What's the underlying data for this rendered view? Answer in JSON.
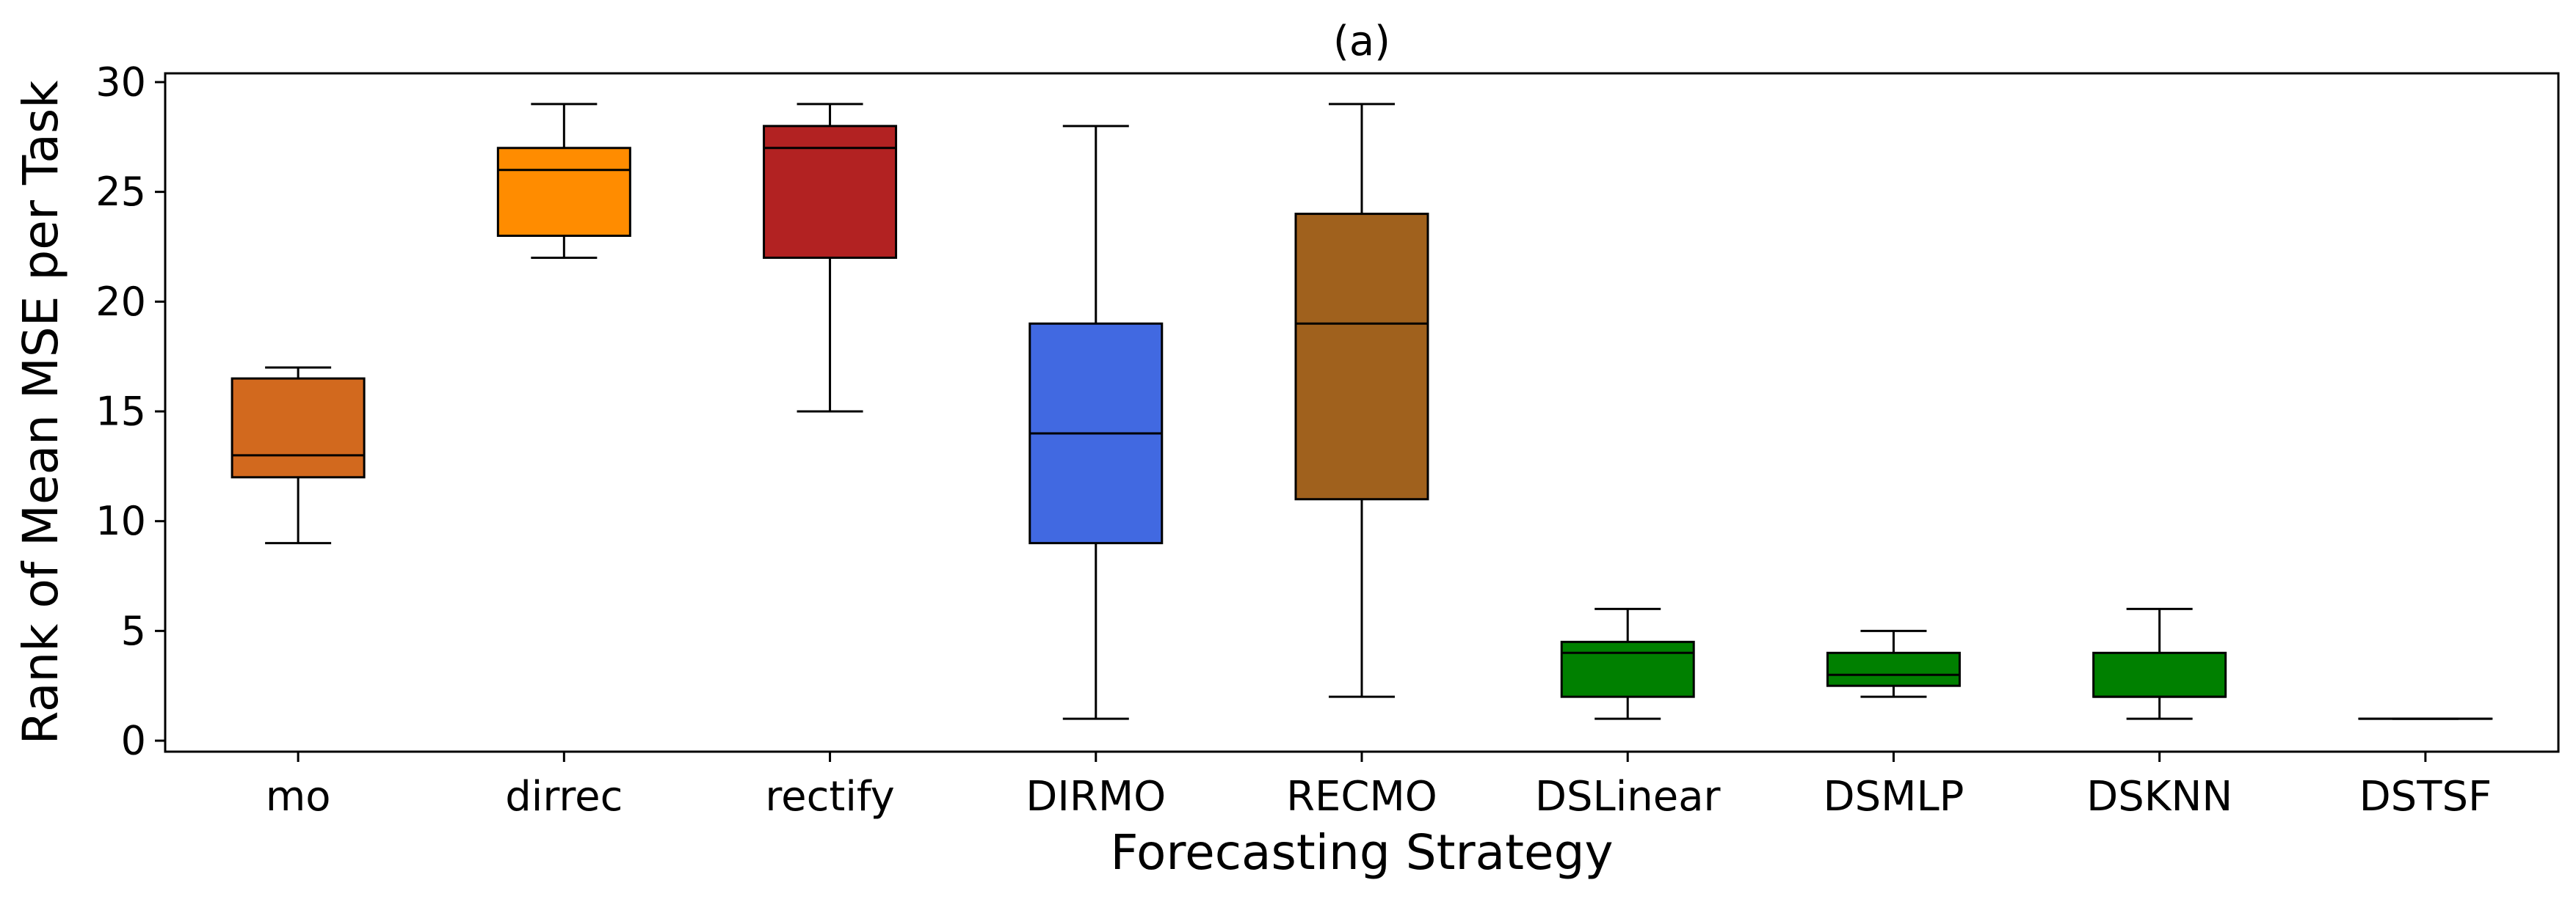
{
  "chart_data": {
    "type": "box",
    "title": "(a)",
    "xlabel": "Forecasting Strategy",
    "ylabel": "Rank of Mean MSE per Task",
    "ylim": [
      -0.5,
      30.4
    ],
    "yticks": [
      0,
      5,
      10,
      15,
      20,
      25,
      30
    ],
    "categories": [
      "mo",
      "dirrec",
      "rectify",
      "DIRMO",
      "RECMO",
      "DSLinear",
      "DSMLP",
      "DSKNN",
      "DSTSF"
    ],
    "boxes": [
      {
        "label": "mo",
        "whisker_low": 9,
        "q1": 12,
        "median": 13,
        "q3": 16.5,
        "whisker_high": 17,
        "color": "#D2691E"
      },
      {
        "label": "dirrec",
        "whisker_low": 22,
        "q1": 23,
        "median": 26,
        "q3": 27,
        "whisker_high": 29,
        "color": "#FF8C00"
      },
      {
        "label": "rectify",
        "whisker_low": 15,
        "q1": 22,
        "median": 27,
        "q3": 28,
        "whisker_high": 29,
        "color": "#B22222"
      },
      {
        "label": "DIRMO",
        "whisker_low": 1,
        "q1": 9,
        "median": 14,
        "q3": 19,
        "whisker_high": 28,
        "color": "#4169E1"
      },
      {
        "label": "RECMO",
        "whisker_low": 2,
        "q1": 11,
        "median": 19,
        "q3": 24,
        "whisker_high": 29,
        "color": "#A0611D"
      },
      {
        "label": "DSLinear",
        "whisker_low": 1,
        "q1": 2,
        "median": 4,
        "q3": 4.5,
        "whisker_high": 6,
        "color": "#008000"
      },
      {
        "label": "DSMLP",
        "whisker_low": 2,
        "q1": 2.5,
        "median": 3,
        "q3": 4,
        "whisker_high": 5,
        "color": "#008000"
      },
      {
        "label": "DSKNN",
        "whisker_low": 1,
        "q1": 2,
        "median": 2,
        "q3": 4,
        "whisker_high": 6,
        "color": "#008000"
      },
      {
        "label": "DSTSF",
        "whisker_low": 1,
        "q1": 1,
        "median": 1,
        "q3": 1,
        "whisker_high": 1,
        "color": "#008000"
      }
    ]
  }
}
